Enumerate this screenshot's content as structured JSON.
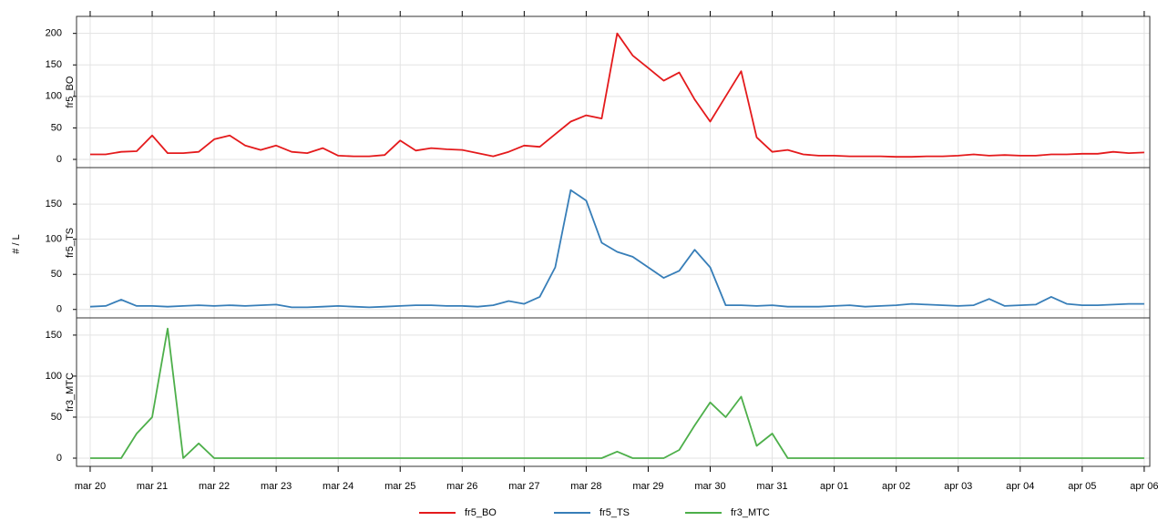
{
  "chart_data": {
    "type": "line",
    "y_label": "# / L",
    "x": [
      0,
      0.25,
      0.5,
      0.75,
      1,
      1.25,
      1.5,
      1.75,
      2,
      2.25,
      2.5,
      2.75,
      3,
      3.25,
      3.5,
      3.75,
      4,
      4.25,
      4.5,
      4.75,
      5,
      5.25,
      5.5,
      5.75,
      6,
      6.25,
      6.5,
      6.75,
      7,
      7.25,
      7.5,
      7.75,
      8,
      8.25,
      8.5,
      8.75,
      9,
      9.25,
      9.5,
      9.75,
      10,
      10.25,
      10.5,
      10.75,
      11,
      11.25,
      11.5,
      11.75,
      12,
      12.25,
      12.5,
      12.75,
      13,
      13.25,
      13.5,
      13.75,
      14,
      14.25,
      14.5,
      14.75,
      15,
      15.25,
      15.5,
      15.75,
      16,
      16.25,
      16.5,
      16.75,
      17
    ],
    "xlim": [
      -0.22,
      17.09
    ],
    "xticks": [
      {
        "value": 0,
        "label": "mar 20"
      },
      {
        "value": 1,
        "label": "mar 21"
      },
      {
        "value": 2,
        "label": "mar 22"
      },
      {
        "value": 3,
        "label": "mar 23"
      },
      {
        "value": 4,
        "label": "mar 24"
      },
      {
        "value": 5,
        "label": "mar 25"
      },
      {
        "value": 6,
        "label": "mar 26"
      },
      {
        "value": 7,
        "label": "mar 27"
      },
      {
        "value": 8,
        "label": "mar 28"
      },
      {
        "value": 9,
        "label": "mar 29"
      },
      {
        "value": 10,
        "label": "mar 30"
      },
      {
        "value": 11,
        "label": "mar 31"
      },
      {
        "value": 12,
        "label": "apr 01"
      },
      {
        "value": 13,
        "label": "apr 02"
      },
      {
        "value": 14,
        "label": "apr 03"
      },
      {
        "value": 15,
        "label": "apr 04"
      },
      {
        "value": 16,
        "label": "apr 05"
      },
      {
        "value": 17,
        "label": "apr 06"
      }
    ],
    "grid": true,
    "panels": [
      {
        "label": "fr5_BO",
        "ylim": [
          -13,
          227
        ],
        "yticks": [
          0,
          50,
          100,
          150,
          200
        ],
        "series": [
          {
            "name": "fr5_BO",
            "color": "#e41a1c",
            "values": [
              8,
              8,
              12,
              13,
              38,
              10,
              10,
              12,
              32,
              38,
              22,
              15,
              22,
              12,
              10,
              18,
              6,
              5,
              5,
              7,
              30,
              14,
              18,
              16,
              15,
              10,
              5,
              12,
              22,
              20,
              40,
              60,
              70,
              65,
              200,
              165,
              145,
              125,
              138,
              95,
              60,
              100,
              140,
              35,
              12,
              15,
              8,
              6,
              6,
              5,
              5,
              5,
              4,
              4,
              5,
              5,
              6,
              8,
              6,
              7,
              6,
              6,
              8,
              8,
              9,
              9,
              12,
              10,
              11
            ]
          }
        ]
      },
      {
        "label": "fr5_TS",
        "ylim": [
          -12,
          202
        ],
        "yticks": [
          0,
          50,
          100,
          150
        ],
        "series": [
          {
            "name": "fr5_TS",
            "color": "#377eb8",
            "values": [
              4,
              5,
              14,
              5,
              5,
              4,
              5,
              6,
              5,
              6,
              5,
              6,
              7,
              3,
              3,
              4,
              5,
              4,
              3,
              4,
              5,
              6,
              6,
              5,
              5,
              4,
              6,
              12,
              8,
              18,
              60,
              170,
              155,
              95,
              82,
              75,
              60,
              45,
              55,
              85,
              60,
              6,
              6,
              5,
              6,
              4,
              4,
              4,
              5,
              6,
              4,
              5,
              6,
              8,
              7,
              6,
              5,
              6,
              15,
              5,
              6,
              7,
              18,
              8,
              6,
              6,
              7,
              8,
              8
            ]
          }
        ]
      },
      {
        "label": "fr3_MTC",
        "ylim": [
          -10,
          171
        ],
        "yticks": [
          0,
          50,
          100,
          150
        ],
        "series": [
          {
            "name": "fr3_MTC",
            "color": "#4daf4a",
            "values": [
              0,
              0,
              0,
              30,
              50,
              158,
              0,
              18,
              0,
              0,
              0,
              0,
              0,
              0,
              0,
              0,
              0,
              0,
              0,
              0,
              0,
              0,
              0,
              0,
              0,
              0,
              0,
              0,
              0,
              0,
              0,
              0,
              0,
              0,
              8,
              0,
              0,
              0,
              10,
              40,
              68,
              50,
              75,
              15,
              30,
              0,
              0,
              0,
              0,
              0,
              0,
              0,
              0,
              0,
              0,
              0,
              0,
              0,
              0,
              0,
              0,
              0,
              0,
              0,
              0,
              0,
              0,
              0,
              0
            ]
          }
        ]
      }
    ]
  }
}
